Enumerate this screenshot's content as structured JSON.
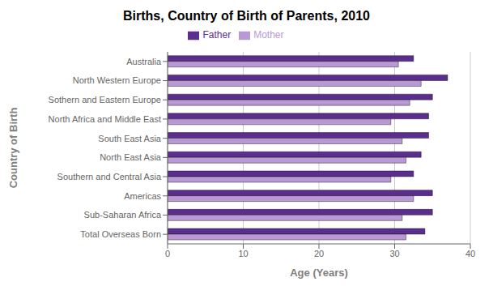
{
  "chart_data": {
    "type": "bar",
    "orientation": "horizontal",
    "title": "Births, Country of Birth of Parents, 2010",
    "xlabel": "Age (Years)",
    "ylabel": "Country of Birth",
    "categories": [
      "Total Overseas Born",
      "Sub-Saharan Africa",
      "Americas",
      "Southern and Central Asia",
      "North East Asia",
      "South East Asia",
      "North Africa and Middle East",
      "Sothern and Eastern Europe",
      "North Western Europe",
      "Australia"
    ],
    "series": [
      {
        "name": "Father",
        "color": "#5b2d8e",
        "values": [
          34.0,
          35.0,
          35.0,
          32.5,
          33.5,
          34.5,
          34.5,
          35.0,
          37.0,
          32.5
        ]
      },
      {
        "name": "Mother",
        "color": "#b899d4",
        "values": [
          31.5,
          31.0,
          32.5,
          29.5,
          31.5,
          31.0,
          29.5,
          32.0,
          33.5,
          30.5
        ]
      }
    ],
    "xlim": [
      0,
      40
    ],
    "xticks": [
      0,
      10,
      20,
      30,
      40
    ],
    "grid": true,
    "legend": "top"
  }
}
